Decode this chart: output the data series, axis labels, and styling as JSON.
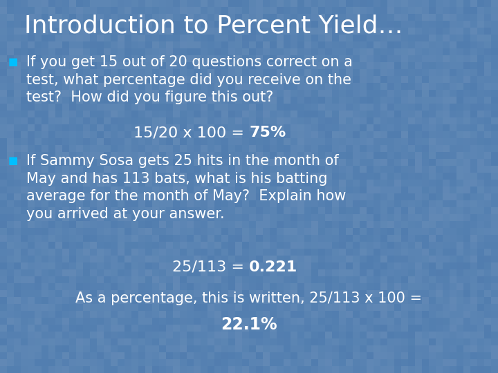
{
  "title": "Introduction to Percent Yield…",
  "title_fontsize": 26,
  "title_font": "Comic Sans MS",
  "bg_color": "#5a7aaa",
  "bullet_color": "#00bfff",
  "text_color": "#FFFFFF",
  "body_fontsize": 15,
  "formula_fontsize": 16,
  "bullet1_text": "If you get 15 out of 20 questions correct on a\ntest, what percentage did you receive on the\ntest?  How did you figure this out?",
  "bullet1_formula_normal": "15/20 x 100 = ",
  "bullet1_formula_bold": "75%",
  "bullet2_text": "If Sammy Sosa gets 25 hits in the month of\nMay and has 113 bats, what is his batting\naverage for the month of May?  Explain how\nyou arrived at your answer.",
  "bullet2_formula1_normal": "25/113 = ",
  "bullet2_formula1_bold": "0.221",
  "bottom_line_normal": "As a percentage, this is written, 25/113 x 100 =",
  "bottom_formula_bold": "22.1%",
  "bullet_square": "■"
}
